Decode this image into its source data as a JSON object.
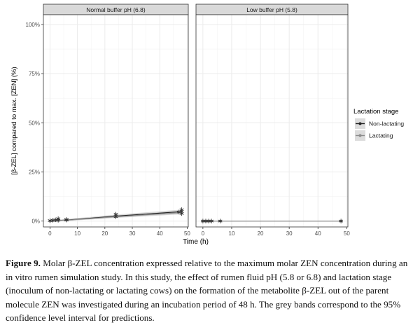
{
  "chart_data": {
    "type": "line",
    "facets": [
      {
        "title": "Normal buffer pH (6.8)",
        "series": [
          {
            "name": "Non-lactating",
            "x": [
              0,
              1,
              2,
              3,
              6,
              24,
              48
            ],
            "y": [
              0.0,
              0.1,
              0.2,
              0.3,
              0.5,
              2.5,
              4.8
            ],
            "ci_lower": [
              0.0,
              0.0,
              0.0,
              0.0,
              0.1,
              1.8,
              3.8
            ],
            "ci_upper": [
              0.1,
              0.3,
              0.5,
              0.7,
              1.0,
              3.3,
              5.8
            ]
          },
          {
            "name": "Lactating",
            "x": [
              0,
              1,
              2,
              3,
              6,
              24,
              48
            ],
            "y": [
              0.0,
              0.1,
              0.2,
              0.3,
              0.4,
              2.2,
              4.3
            ],
            "ci_lower": [
              0.0,
              0.0,
              0.0,
              0.0,
              0.0,
              1.6,
              3.4
            ],
            "ci_upper": [
              0.1,
              0.3,
              0.4,
              0.6,
              0.9,
              2.9,
              5.3
            ]
          }
        ],
        "observations": [
          {
            "x": 0,
            "y": 0.2
          },
          {
            "x": 1,
            "y": 0.4
          },
          {
            "x": 2,
            "y": 0.6
          },
          {
            "x": 3,
            "y": 1.2
          },
          {
            "x": 3,
            "y": 0.4
          },
          {
            "x": 6,
            "y": 0.8
          },
          {
            "x": 6,
            "y": 0.5
          },
          {
            "x": 24,
            "y": 3.5
          },
          {
            "x": 24,
            "y": 2.2
          },
          {
            "x": 48,
            "y": 5.8
          },
          {
            "x": 48,
            "y": 3.8
          },
          {
            "x": 47,
            "y": 4.6
          }
        ]
      },
      {
        "title": "Low buffer pH (5.8)",
        "series": [
          {
            "name": "Non-lactating",
            "x": [
              0,
              1,
              2,
              3,
              6,
              48
            ],
            "y": [
              0,
              0,
              0,
              0,
              0,
              0
            ],
            "ci_lower": [
              0,
              0,
              0,
              0,
              0,
              0
            ],
            "ci_upper": [
              0.05,
              0.05,
              0.05,
              0.05,
              0.05,
              0.1
            ]
          },
          {
            "name": "Lactating",
            "x": [
              0,
              1,
              2,
              3,
              6,
              48
            ],
            "y": [
              0,
              0,
              0,
              0,
              0,
              0
            ],
            "ci_lower": [
              0,
              0,
              0,
              0,
              0,
              0
            ],
            "ci_upper": [
              0.05,
              0.05,
              0.05,
              0.05,
              0.05,
              0.1
            ]
          }
        ],
        "observations": [
          {
            "x": 0,
            "y": 0
          },
          {
            "x": 1,
            "y": 0
          },
          {
            "x": 2,
            "y": 0
          },
          {
            "x": 3,
            "y": 0
          },
          {
            "x": 6,
            "y": 0
          },
          {
            "x": 48,
            "y": 0
          }
        ]
      }
    ],
    "xlabel": "Time (h)",
    "ylabel": "[β-ZEL] compared to max. [ZEN] (%)",
    "xticks": [
      0,
      10,
      20,
      30,
      40,
      50
    ],
    "yticks": [
      0,
      25,
      50,
      75,
      100
    ],
    "ytick_labels": [
      "0%",
      "25%",
      "50%",
      "75%",
      "100%"
    ],
    "xlim": [
      -2.4,
      50.4
    ],
    "ylim": [
      -3,
      105
    ],
    "grid": true,
    "legend": {
      "title": "Lactation stage",
      "position": "right",
      "entries": [
        "Non-lactating",
        "Lactating"
      ]
    },
    "colors": {
      "Non-lactating": "#222222",
      "Lactating": "#8c8c8c",
      "band": "#bdbdbd",
      "strip": "#d9d9d9",
      "grid": "#ebebeb"
    }
  },
  "caption": {
    "label": "Figure 9.",
    "text": " Molar β-ZEL concentration expressed relative to the maximum molar ZEN concentration during an in vitro rumen simulation study. In this study, the effect of rumen fluid pH (5.8 or 6.8) and lactation stage (inoculum of non-lactating or lactating cows) on the formation of the metabolite β-ZEL out of the parent molecule ZEN was investigated during an incubation period of 48 h. The grey bands correspond to the 95% confidence level interval for predictions."
  }
}
